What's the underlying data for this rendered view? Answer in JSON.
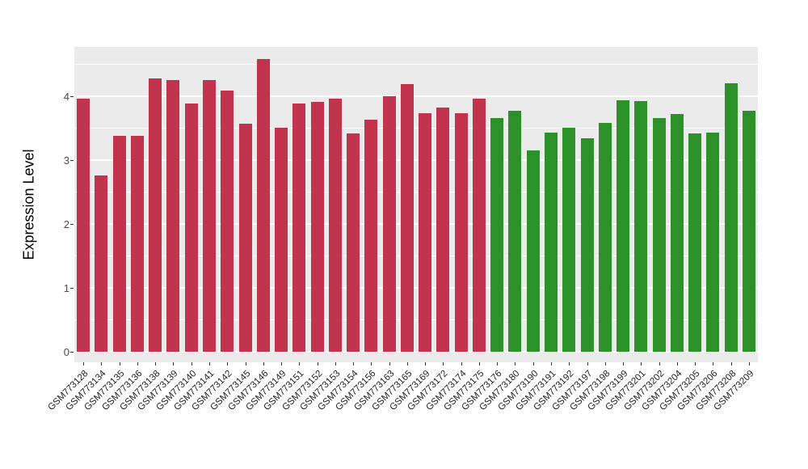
{
  "chart_data": {
    "type": "bar",
    "title": "",
    "xlabel": "",
    "ylabel": "Expression Level",
    "ylim": [
      0,
      4.77
    ],
    "yticks": [
      0,
      1,
      2,
      3,
      4
    ],
    "yticks_minor": [
      0.5,
      1.5,
      2.5,
      3.5,
      4.5
    ],
    "grid": "on",
    "legend_position": "none",
    "panel_background": "#EBEBEB",
    "gridline_color": "#FFFFFF",
    "group_colors": {
      "red": "#C2344E",
      "green": "#2B9128"
    },
    "categories": [
      "GSM773128",
      "GSM773134",
      "GSM773135",
      "GSM773136",
      "GSM773138",
      "GSM773139",
      "GSM773140",
      "GSM773141",
      "GSM773142",
      "GSM773145",
      "GSM773146",
      "GSM773149",
      "GSM773151",
      "GSM773152",
      "GSM773153",
      "GSM773154",
      "GSM773156",
      "GSM773163",
      "GSM773165",
      "GSM773169",
      "GSM773172",
      "GSM773174",
      "GSM773175",
      "GSM773176",
      "GSM773180",
      "GSM773190",
      "GSM773191",
      "GSM773192",
      "GSM773197",
      "GSM773198",
      "GSM773199",
      "GSM773201",
      "GSM773202",
      "GSM773204",
      "GSM773205",
      "GSM773206",
      "GSM773208",
      "GSM773209"
    ],
    "values": [
      3.96,
      2.76,
      3.38,
      3.38,
      4.28,
      4.25,
      3.89,
      4.25,
      4.09,
      3.57,
      4.58,
      3.51,
      3.89,
      3.91,
      3.96,
      3.42,
      3.63,
      4.0,
      4.19,
      3.73,
      3.82,
      3.73,
      3.96,
      3.66,
      3.77,
      3.15,
      3.43,
      3.51,
      3.34,
      3.58,
      3.94,
      3.92,
      3.66,
      3.72,
      3.42,
      3.43,
      4.2,
      3.77
    ],
    "groups": [
      "red",
      "red",
      "red",
      "red",
      "red",
      "red",
      "red",
      "red",
      "red",
      "red",
      "red",
      "red",
      "red",
      "red",
      "red",
      "red",
      "red",
      "red",
      "red",
      "red",
      "red",
      "red",
      "red",
      "green",
      "green",
      "green",
      "green",
      "green",
      "green",
      "green",
      "green",
      "green",
      "green",
      "green",
      "green",
      "green",
      "green",
      "green"
    ]
  }
}
